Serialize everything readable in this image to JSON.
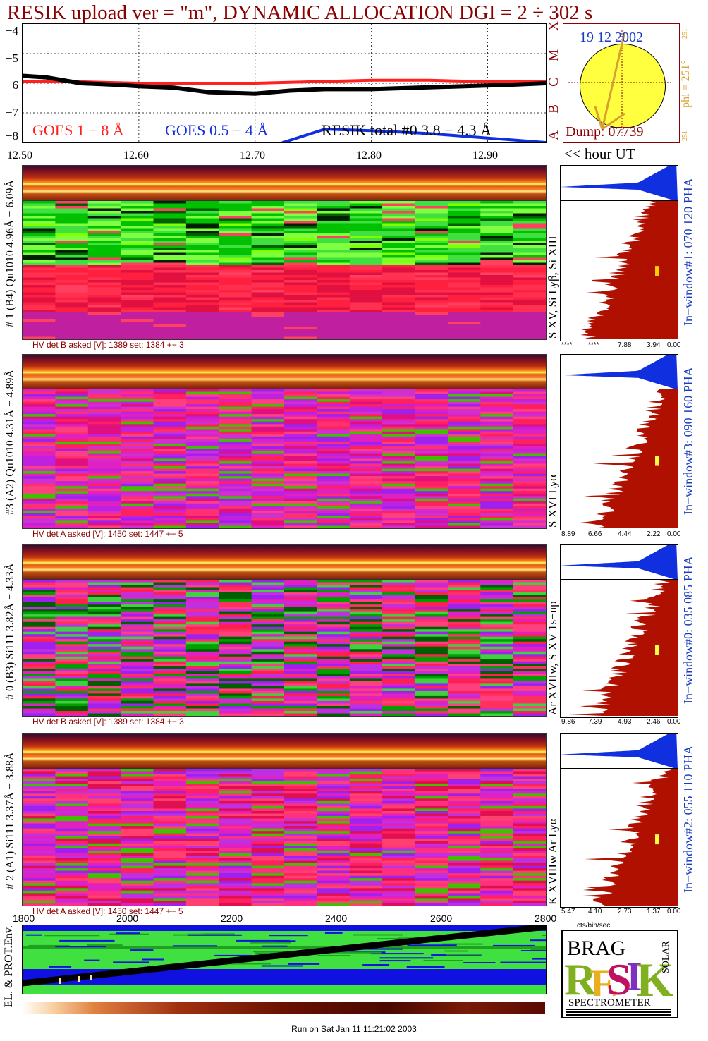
{
  "title": "RESIK upload ver = \"m\", DYNAMIC ALLOCATION  DGI =   2 ÷ 302 s",
  "goes": {
    "yticks": [
      "−4",
      "−5",
      "−6",
      "−7",
      "−8"
    ],
    "xticks": [
      "12.50",
      "12.60",
      "12.70",
      "12.80",
      "12.90"
    ],
    "legend_goes_long": "GOES 1 − 8 Å",
    "legend_goes_short": "GOES 0.5 − 4 Å",
    "legend_resik": "RESIK total #0  3.8 − 4.3 Å",
    "hour_label": "<< hour UT",
    "class_letters": [
      "X",
      "M",
      "C",
      "B",
      "A"
    ],
    "colors": {
      "long": "#ff2020",
      "short": "#1030e0",
      "resik": "#000000"
    }
  },
  "sun": {
    "date": "19 12 2002",
    "phi_label": "phi = 251°",
    "phi_top": "251",
    "phi_bottom": "251",
    "dump": "Dump: 07739"
  },
  "detectors": [
    {
      "id": "d1",
      "left_label": "# 1 (B4) Qu1010 4.96Å − 6.09Å",
      "line_label": "S XV, Si Lyβ, Si XIII",
      "hv": "HV det B asked [V]:  1389 set:  1384 +−    3",
      "inwindow": "In−window#1:  070 120 PHA",
      "ticks": [
        "****",
        "****",
        "7.88",
        "3.94",
        "0.00"
      ]
    },
    {
      "id": "d3",
      "left_label": "#3 (A2) Qu1010  4.31Å − 4.89Å",
      "line_label": "S XVI Lyα",
      "hv": "HV det A asked [V]:  1450 set:  1447 +−    5",
      "inwindow": "In−window#3:  090 160 PHA",
      "ticks": [
        "8.89",
        "6.66",
        "4.44",
        "2.22",
        "0.00"
      ]
    },
    {
      "id": "d0",
      "left_label": "# 0 (B3) Si111  3.82Å − 4.33Å",
      "line_label": "Ar XVIIw, S XV 1s−np",
      "hv": "HV det B asked [V]:  1389 set:  1384 +−    3",
      "inwindow": "In−window#0:  035 085 PHA",
      "ticks": [
        "9.86",
        "7.39",
        "4.93",
        "2.46",
        "0.00"
      ]
    },
    {
      "id": "d2",
      "left_label": "# 2 (A1) Si111  3.37Å − 3.88Å",
      "line_label": "K XVIIIw  Ar Lyα",
      "hv": "HV det A asked [V]:  1450 set:  1447 +−    5",
      "inwindow": "In−window#2:  055 110 PHA",
      "ticks": [
        "5.47",
        "4.10",
        "2.73",
        "1.37",
        "0.00"
      ]
    }
  ],
  "units_label": "cts/bin/sec",
  "bottom": {
    "xticks": [
      "1800",
      "2000",
      "2200",
      "2400",
      "2600",
      "2800"
    ],
    "left_label": "EL. & PROT.Env."
  },
  "logo": {
    "top_letters": "BRAG",
    "big": "RESIK",
    "side": "SOLAR",
    "bottom": "SPECTROMETER"
  },
  "footer": "Run on Sat Jan 11 11:21:02 2003",
  "chart_data": {
    "type": "line",
    "title": "RESIK upload ver = \"m\", DYNAMIC ALLOCATION  DGI =   2 ÷ 302 s",
    "xlabel": "<< hour UT",
    "ylabel": "",
    "xlim": [
      12.5,
      12.95
    ],
    "ylim": [
      -8,
      -4
    ],
    "series": [
      {
        "name": "GOES 1 − 8 Å",
        "x": [
          12.5,
          12.55,
          12.6,
          12.65,
          12.7,
          12.75,
          12.8,
          12.85,
          12.9,
          12.95
        ],
        "values": [
          -5.95,
          -5.95,
          -6.0,
          -6.0,
          -6.0,
          -5.95,
          -5.9,
          -5.9,
          -5.95,
          -5.95
        ]
      },
      {
        "name": "GOES 0.5 − 4 Å",
        "x": [
          12.72,
          12.76,
          12.8,
          12.85,
          12.9,
          12.95
        ],
        "values": [
          -8.05,
          -7.55,
          -7.6,
          -7.7,
          -7.85,
          -8.0
        ]
      },
      {
        "name": "RESIK total #0  3.8 − 4.3 Å",
        "x": [
          12.5,
          12.52,
          12.55,
          12.58,
          12.6,
          12.63,
          12.66,
          12.7,
          12.73,
          12.76,
          12.8,
          12.84,
          12.88,
          12.92,
          12.95
        ],
        "values": [
          -5.75,
          -5.8,
          -6.0,
          -6.05,
          -6.1,
          -6.15,
          -6.3,
          -6.35,
          -6.25,
          -6.2,
          -6.2,
          -6.15,
          -6.1,
          -6.05,
          -6.0
        ]
      }
    ]
  }
}
